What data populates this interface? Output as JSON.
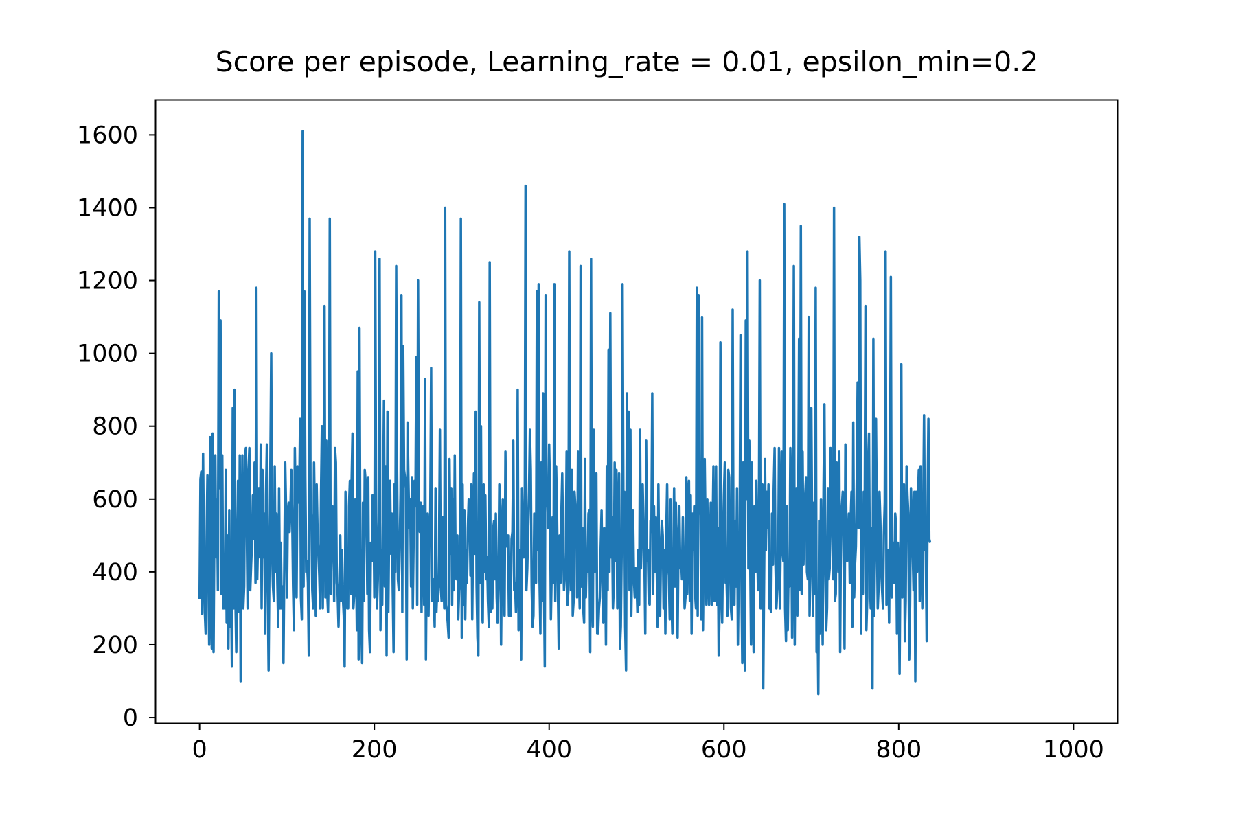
{
  "chart_data": {
    "type": "line",
    "title": "Score per episode, Learning_rate = 0.01, epsilon_min=0.2",
    "xlabel": "",
    "ylabel": "",
    "xlim": [
      -50,
      1050
    ],
    "ylim": [
      -15,
      1695
    ],
    "grid": false,
    "x_ticks": [
      0,
      200,
      400,
      600,
      800,
      1000
    ],
    "x_tick_labels": [
      "0",
      "200",
      "400",
      "600",
      "800",
      "1000"
    ],
    "y_ticks": [
      0,
      200,
      400,
      600,
      800,
      1000,
      1200,
      1400,
      1600
    ],
    "y_tick_labels": [
      "0",
      "200",
      "400",
      "600",
      "800",
      "1000",
      "1200",
      "1400",
      "1600"
    ],
    "series": [
      {
        "name": "score",
        "color": "#1f77b4",
        "x_start": 0,
        "x_step": 1,
        "values": [
          325,
          655,
          675,
          285,
          725,
          445,
          290,
          230,
          480,
          665,
          410,
          200,
          770,
          330,
          190,
          780,
          180,
          560,
          720,
          440,
          600,
          350,
          1170,
          630,
          1090,
          340,
          720,
          300,
          400,
          300,
          680,
          260,
          500,
          190,
          570,
          250,
          380,
          140,
          850,
          300,
          900,
          330,
          180,
          480,
          650,
          290,
          720,
          100,
          400,
          720,
          300,
          360,
          720,
          740,
          530,
          300,
          680,
          740,
          350,
          420,
          480,
          610,
          490,
          700,
          370,
          1180,
          380,
          500,
          630,
          440,
          750,
          300,
          680,
          440,
          560,
          230,
          610,
          750,
          360,
          130,
          440,
          690,
          1000,
          460,
          360,
          320,
          690,
          400,
          560,
          370,
          250,
          630,
          300,
          480,
          300,
          360,
          150,
          430,
          700,
          570,
          330,
          560,
          590,
          510,
          580,
          680,
          560,
          360,
          240,
          740,
          570,
          330,
          690,
          680,
          590,
          820,
          330,
          270,
          1610,
          360,
          1170,
          660,
          400,
          430,
          370,
          170,
          1370,
          600,
          550,
          350,
          300,
          700,
          520,
          280,
          640,
          510,
          460,
          390,
          300,
          620,
          800,
          300,
          700,
          1130,
          330,
          760,
          350,
          290,
          460,
          1370,
          340,
          450,
          580,
          560,
          320,
          740,
          700,
          370,
          340,
          250,
          380,
          500,
          320,
          460,
          330,
          280,
          140,
          620,
          320,
          300,
          300,
          580,
          650,
          340,
          650,
          780,
          300,
          340,
          600,
          470,
          240,
          950,
          160,
          1070,
          420,
          260,
          150,
          590,
          320,
          680,
          650,
          550,
          340,
          660,
          240,
          180,
          480,
          430,
          610,
          600,
          330,
          1280,
          560,
          300,
          380,
          540,
          1260,
          240,
          460,
          310,
          570,
          870,
          360,
          690,
          170,
          840,
          290,
          550,
          650,
          450,
          560,
          360,
          180,
          640,
          400,
          1240,
          680,
          380,
          350,
          460,
          620,
          1160,
          290,
          1020,
          680,
          660,
          630,
          160,
          810,
          650,
          520,
          600,
          360,
          660,
          300,
          500,
          650,
          580,
          990,
          310,
          1200,
          600,
          510,
          590,
          290,
          570,
          580,
          310,
          930,
          160,
          480,
          560,
          280,
          490,
          570,
          960,
          320,
          380,
          340,
          250,
          630,
          290,
          360,
          320,
          450,
          790,
          360,
          320,
          550,
          420,
          300,
          1400,
          310,
          290,
          260,
          220,
          710,
          450,
          630,
          310,
          600,
          350,
          720,
          400,
          380,
          500,
          270,
          350,
          370,
          1370,
          220,
          640,
          310,
          570,
          270,
          460,
          370,
          520,
          600,
          580,
          390,
          640,
          270,
          520,
          670,
          450,
          840,
          360,
          220,
          170,
          1140,
          370,
          800,
          300,
          260,
          640,
          400,
          610,
          380,
          440,
          320,
          250,
          1250,
          290,
          330,
          300,
          520,
          540,
          380,
          560,
          330,
          260,
          370,
          640,
          580,
          200,
          470,
          600,
          310,
          280,
          730,
          470,
          500,
          500,
          280,
          300,
          280,
          490,
          510,
          760,
          350,
          370,
          290,
          390,
          900,
          240,
          300,
          460,
          160,
          630,
          520,
          440,
          460,
          1460,
          350,
          410,
          520,
          620,
          790,
          680,
          360,
          250,
          280,
          560,
          550,
          370,
          1170,
          460,
          1190,
          380,
          230,
          700,
          320,
          890,
          400,
          140,
          1160,
          580,
          600,
          520,
          750,
          620,
          270,
          410,
          550,
          370,
          1190,
          320,
          690,
          560,
          360,
          190,
          500,
          370,
          560,
          670,
          470,
          350,
          390,
          420,
          730,
          310,
          350,
          1280,
          450,
          350,
          680,
          280,
          320,
          620,
          580,
          580,
          330,
          730,
          420,
          300,
          1240,
          360,
          520,
          300,
          260,
          710,
          330,
          460,
          400,
          560,
          570,
          180,
          1260,
          340,
          250,
          790,
          400,
          610,
          670,
          230,
          230,
          300,
          330,
          470,
          570,
          380,
          260,
          520,
          440,
          200,
          690,
          350,
          1010,
          400,
          1110,
          440,
          550,
          300,
          360,
          700,
          430,
          680,
          300,
          510,
          670,
          190,
          250,
          460,
          1190,
          560,
          620,
          250,
          130,
          890,
          560,
          840,
          350,
          790,
          280,
          450,
          570,
          380,
          330,
          410,
          380,
          290,
          460,
          310,
          790,
          410,
          490,
          640,
          520,
          440,
          230,
          760,
          430,
          460,
          320,
          310,
          540,
          510,
          890,
          340,
          580,
          400,
          550,
          440,
          250,
          640,
          390,
          280,
          470,
          540,
          500,
          300,
          460,
          230,
          500,
          640,
          420,
          390,
          270,
          600,
          330,
          230,
          410,
          630,
          360,
          590,
          480,
          220,
          480,
          580,
          410,
          440,
          380,
          550,
          420,
          300,
          330,
          660,
          340,
          610,
          650,
          320,
          610,
          230,
          560,
          460,
          580,
          340,
          300,
          1180,
          280,
          1160,
          560,
          600,
          270,
          1100,
          240,
          490,
          710,
          500,
          310,
          600,
          400,
          310,
          490,
          590,
          310,
          500,
          690,
          320,
          320,
          690,
          310,
          520,
          170,
          300,
          1030,
          410,
          260,
          500,
          610,
          700,
          370,
          380,
          280,
          680,
          660,
          430,
          300,
          270,
          1120,
          420,
          310,
          540,
          360,
          630,
          200,
          420,
          490,
          1050,
          390,
          150,
          700,
          250,
          130,
          1090,
          600,
          1280,
          410,
          760,
          460,
          200,
          700,
          360,
          180,
          580,
          400,
          650,
          490,
          350,
          530,
          1200,
          300,
          500,
          640,
          80,
          390,
          710,
          460,
          620,
          520,
          640,
          300,
          300,
          290,
          560,
          420,
          630,
          740,
          420,
          300,
          350,
          370,
          740,
          300,
          500,
          730,
          460,
          430,
          1410,
          300,
          210,
          580,
          240,
          420,
          360,
          740,
          610,
          220,
          530,
          1240,
          200,
          550,
          630,
          280,
          580,
          1040,
          350,
          1350,
          340,
          730,
          420,
          540,
          610,
          660,
          400,
          380,
          1100,
          280,
          430,
          850,
          480,
          280,
          590,
          340,
          1180,
          180,
          320,
          65,
          540,
          230,
          600,
          350,
          200,
          630,
          860,
          430,
          240,
          300,
          630,
          380,
          410,
          740,
          580,
          500,
          380,
          1400,
          320,
          340,
          700,
          540,
          400,
          730,
          180,
          550,
          580,
          620,
          430,
          190,
          750,
          560,
          430,
          440,
          560,
          370,
          540,
          620,
          250,
          810,
          330,
          420,
          470,
          650,
          920,
          520,
          1320,
          1200,
          230,
          560,
          340,
          620,
          500,
          1130,
          240,
          330,
          700,
          780,
          380,
          300,
          520,
          80,
          1040,
          280,
          510,
          820,
          520,
          300,
          360,
          620,
          540,
          400,
          350,
          300,
          500,
          590,
          1280,
          310,
          430,
          460,
          260,
          580,
          1210,
          330,
          410,
          480,
          370,
          560,
          530,
          230,
          480,
          400,
          120,
          480,
          970,
          330,
          500,
          640,
          210,
          320,
          690,
          610,
          560,
          160,
          310,
          630,
          560,
          460,
          350,
          620,
          100,
          620,
          400,
          600,
          680,
          320,
          690,
          500,
          300,
          550,
          830,
          460,
          460,
          210,
          570,
          820,
          490,
          480
        ]
      }
    ]
  }
}
